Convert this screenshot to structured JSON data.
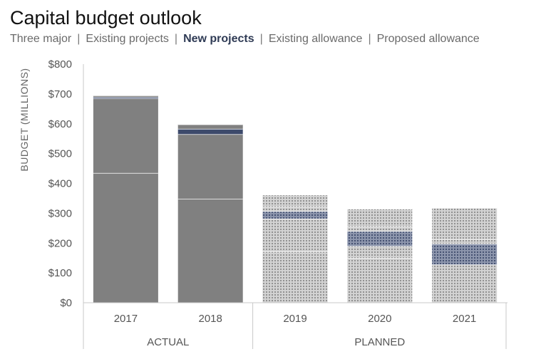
{
  "colors": {
    "actual": "#808080",
    "planned_base": "#d3d3d3",
    "planned_dot": "#8a8a8a",
    "new_projects": "#3d4a6b",
    "new_projects_planned_base": "#8d96ad",
    "axis": "#c8c8c8",
    "separator": "#ffffff"
  },
  "chart_data": {
    "type": "bar",
    "stacked": true,
    "title": "Capital budget outlook",
    "legend_items": [
      {
        "name": "Three major",
        "active": false
      },
      {
        "name": "Existing projects",
        "active": false
      },
      {
        "name": "New projects",
        "active": true
      },
      {
        "name": "Existing allowance",
        "active": false
      },
      {
        "name": "Proposed allowance",
        "active": false
      }
    ],
    "separators": [
      "|",
      "|",
      "|",
      "|"
    ],
    "ylabel": "BUDGET (MILLIONS)",
    "ylim": [
      0,
      800
    ],
    "yticks": [
      0,
      100,
      200,
      300,
      400,
      500,
      600,
      700,
      800
    ],
    "ytick_labels": [
      "$0",
      "$100",
      "$200",
      "$300",
      "$400",
      "$500",
      "$600",
      "$700",
      "$800"
    ],
    "categories": [
      "2017",
      "2018",
      "2019",
      "2020",
      "2021"
    ],
    "groups": [
      {
        "label": "ACTUAL",
        "categories": [
          "2017",
          "2018"
        ]
      },
      {
        "label": "PLANNED",
        "categories": [
          "2019",
          "2020",
          "2021"
        ]
      }
    ],
    "planned_categories": [
      "2019",
      "2020",
      "2021"
    ],
    "series": [
      {
        "name": "Three major",
        "values": [
          435,
          348,
          172,
          150,
          128
        ]
      },
      {
        "name": "Existing projects",
        "values": [
          250,
          217,
          110,
          40,
          0
        ]
      },
      {
        "name": "New projects",
        "values": [
          5,
          18,
          25,
          50,
          70
        ]
      },
      {
        "name": "Existing allowance",
        "values": [
          5,
          15,
          15,
          15,
          15
        ]
      },
      {
        "name": "Proposed allowance",
        "values": [
          0,
          0,
          40,
          60,
          105
        ]
      }
    ]
  }
}
